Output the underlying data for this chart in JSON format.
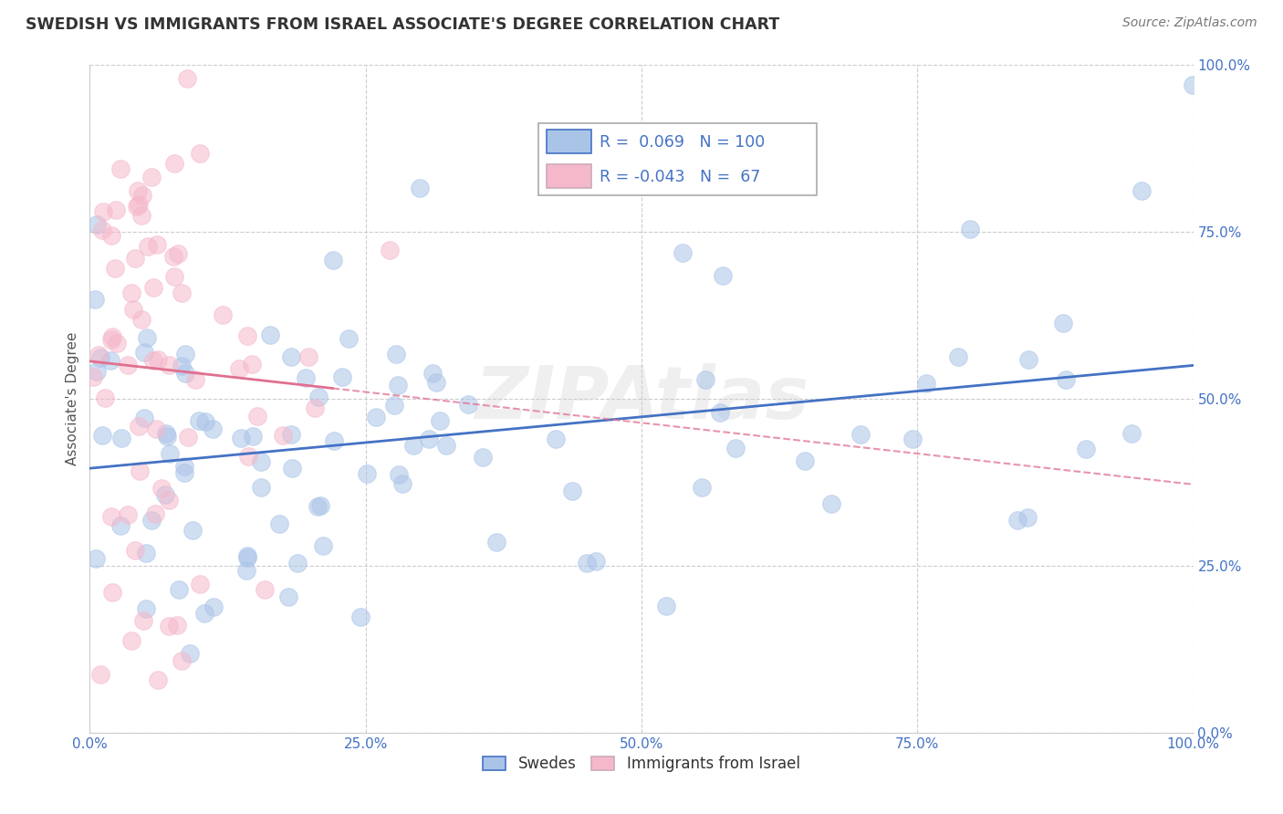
{
  "title": "SWEDISH VS IMMIGRANTS FROM ISRAEL ASSOCIATE'S DEGREE CORRELATION CHART",
  "source": "Source: ZipAtlas.com",
  "ylabel": "Associate's Degree",
  "xlim": [
    0.0,
    1.0
  ],
  "ylim": [
    0.0,
    1.0
  ],
  "xticks": [
    0.0,
    0.25,
    0.5,
    0.75,
    1.0
  ],
  "yticks": [
    0.0,
    0.25,
    0.5,
    0.75,
    1.0
  ],
  "xticklabels": [
    "0.0%",
    "25.0%",
    "50.0%",
    "75.0%",
    "100.0%"
  ],
  "yticklabels": [
    "0.0%",
    "25.0%",
    "50.0%",
    "75.0%",
    "100.0%"
  ],
  "swedes_color": "#aac4e8",
  "israel_color": "#f5b8cb",
  "swedes_line_color": "#4472c4",
  "israel_line_color": "#e07090",
  "legend_box_color_swedes": "#aac4e8",
  "legend_box_color_israel": "#f5b8cb",
  "tick_color": "#4472c4",
  "grid_color": "#cccccc",
  "watermark": "ZIPAtlas",
  "R_swedes": 0.069,
  "N_swedes": 100,
  "R_israel": -0.043,
  "N_israel": 67,
  "dot_size": 200,
  "dot_alpha": 0.55
}
